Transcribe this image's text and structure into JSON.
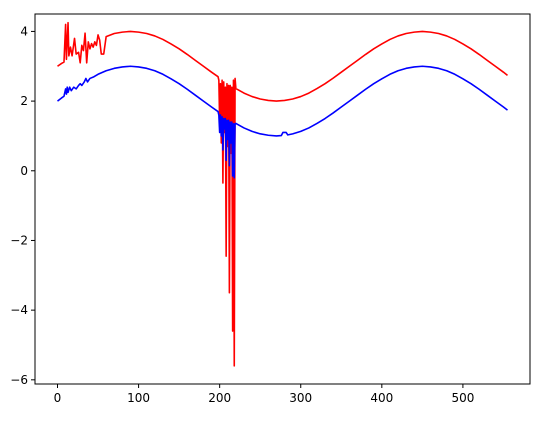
{
  "chart_data": {
    "type": "line",
    "title": "",
    "xlabel": "",
    "ylabel": "",
    "xlim": [
      -27.75,
      582.75
    ],
    "ylim": [
      -6.12,
      4.5
    ],
    "xticks": [
      0,
      100,
      200,
      300,
      400,
      500
    ],
    "yticks": [
      -6,
      -4,
      -2,
      0,
      2,
      4
    ],
    "xtick_labels": [
      "0",
      "100",
      "200",
      "300",
      "400",
      "500"
    ],
    "ytick_labels": [
      "−6",
      "−4",
      "−2",
      "0",
      "2",
      "4"
    ],
    "grid": false,
    "legend": "none",
    "series": [
      {
        "color": "#ff0000",
        "points": [
          [
            0,
            3.0
          ],
          [
            5,
            3.08
          ],
          [
            8,
            3.12
          ],
          [
            10,
            4.2
          ],
          [
            11,
            3.2
          ],
          [
            13,
            4.25
          ],
          [
            14,
            3.3
          ],
          [
            16,
            3.55
          ],
          [
            18,
            3.3
          ],
          [
            21,
            3.8
          ],
          [
            23,
            3.35
          ],
          [
            26,
            3.4
          ],
          [
            28,
            3.1
          ],
          [
            30,
            3.6
          ],
          [
            32,
            3.45
          ],
          [
            34,
            3.95
          ],
          [
            36,
            3.1
          ],
          [
            38,
            3.7
          ],
          [
            40,
            3.5
          ],
          [
            42,
            3.65
          ],
          [
            44,
            3.55
          ],
          [
            46,
            3.7
          ],
          [
            48,
            3.6
          ],
          [
            50,
            3.9
          ],
          [
            52,
            3.75
          ],
          [
            54,
            3.35
          ],
          [
            57,
            3.35
          ],
          [
            60,
            3.85
          ],
          [
            70,
            3.94
          ],
          [
            80,
            3.98
          ],
          [
            90,
            4.0
          ],
          [
            100,
            3.98
          ],
          [
            110,
            3.94
          ],
          [
            120,
            3.87
          ],
          [
            130,
            3.77
          ],
          [
            140,
            3.64
          ],
          [
            150,
            3.5
          ],
          [
            160,
            3.34
          ],
          [
            170,
            3.17
          ],
          [
            180,
            3.0
          ],
          [
            190,
            2.83
          ],
          [
            198,
            2.7
          ],
          [
            199,
            2.6
          ],
          [
            200,
            1.4
          ],
          [
            201,
            2.5
          ],
          [
            202,
            0.8
          ],
          [
            203,
            2.6
          ],
          [
            204,
            -0.35
          ],
          [
            205,
            2.55
          ],
          [
            206,
            1.1
          ],
          [
            207,
            2.4
          ],
          [
            208,
            -2.45
          ],
          [
            209,
            2.5
          ],
          [
            210,
            0.7
          ],
          [
            211,
            2.45
          ],
          [
            212,
            -3.5
          ],
          [
            213,
            2.45
          ],
          [
            214,
            0.5
          ],
          [
            215,
            2.4
          ],
          [
            216,
            -4.6
          ],
          [
            217,
            2.6
          ],
          [
            218,
            -5.6
          ],
          [
            219,
            2.65
          ],
          [
            220,
            2.36
          ],
          [
            230,
            2.23
          ],
          [
            240,
            2.13
          ],
          [
            250,
            2.06
          ],
          [
            260,
            2.02
          ],
          [
            270,
            2.0
          ],
          [
            280,
            2.02
          ],
          [
            290,
            2.06
          ],
          [
            300,
            2.13
          ],
          [
            310,
            2.23
          ],
          [
            320,
            2.36
          ],
          [
            330,
            2.5
          ],
          [
            340,
            2.66
          ],
          [
            350,
            2.83
          ],
          [
            360,
            3.0
          ],
          [
            370,
            3.17
          ],
          [
            380,
            3.34
          ],
          [
            390,
            3.5
          ],
          [
            400,
            3.64
          ],
          [
            410,
            3.77
          ],
          [
            420,
            3.87
          ],
          [
            430,
            3.94
          ],
          [
            440,
            3.98
          ],
          [
            450,
            4.0
          ],
          [
            460,
            3.98
          ],
          [
            470,
            3.94
          ],
          [
            480,
            3.87
          ],
          [
            490,
            3.77
          ],
          [
            500,
            3.64
          ],
          [
            510,
            3.5
          ],
          [
            520,
            3.34
          ],
          [
            530,
            3.17
          ],
          [
            540,
            3.0
          ],
          [
            550,
            2.83
          ],
          [
            555,
            2.74
          ]
        ]
      },
      {
        "color": "#0000ff",
        "points": [
          [
            0,
            2.0
          ],
          [
            5,
            2.09
          ],
          [
            8,
            2.14
          ],
          [
            10,
            2.35
          ],
          [
            11,
            2.2
          ],
          [
            12,
            2.4
          ],
          [
            13,
            2.25
          ],
          [
            15,
            2.4
          ],
          [
            17,
            2.3
          ],
          [
            20,
            2.4
          ],
          [
            23,
            2.35
          ],
          [
            26,
            2.45
          ],
          [
            28,
            2.5
          ],
          [
            30,
            2.45
          ],
          [
            33,
            2.55
          ],
          [
            35,
            2.65
          ],
          [
            37,
            2.55
          ],
          [
            40,
            2.65
          ],
          [
            45,
            2.7
          ],
          [
            50,
            2.77
          ],
          [
            55,
            2.82
          ],
          [
            60,
            2.87
          ],
          [
            70,
            2.94
          ],
          [
            80,
            2.98
          ],
          [
            90,
            3.0
          ],
          [
            100,
            2.98
          ],
          [
            110,
            2.94
          ],
          [
            120,
            2.87
          ],
          [
            130,
            2.77
          ],
          [
            140,
            2.64
          ],
          [
            150,
            2.5
          ],
          [
            160,
            2.34
          ],
          [
            170,
            2.17
          ],
          [
            180,
            2.0
          ],
          [
            190,
            1.83
          ],
          [
            198,
            1.7
          ],
          [
            199,
            1.6
          ],
          [
            200,
            1.1
          ],
          [
            201,
            1.6
          ],
          [
            202,
            1.0
          ],
          [
            203,
            1.55
          ],
          [
            204,
            0.6
          ],
          [
            205,
            1.5
          ],
          [
            206,
            1.2
          ],
          [
            207,
            1.5
          ],
          [
            208,
            0.3
          ],
          [
            209,
            1.45
          ],
          [
            210,
            0.9
          ],
          [
            211,
            1.45
          ],
          [
            212,
            0.15
          ],
          [
            213,
            1.4
          ],
          [
            214,
            0.8
          ],
          [
            215,
            1.4
          ],
          [
            216,
            -0.15
          ],
          [
            217,
            1.35
          ],
          [
            218,
            -0.2
          ],
          [
            219,
            1.35
          ],
          [
            220,
            1.36
          ],
          [
            230,
            1.23
          ],
          [
            240,
            1.13
          ],
          [
            250,
            1.06
          ],
          [
            260,
            1.02
          ],
          [
            270,
            1.0
          ],
          [
            276,
            1.01
          ],
          [
            278,
            1.1
          ],
          [
            282,
            1.1
          ],
          [
            284,
            1.03
          ],
          [
            290,
            1.06
          ],
          [
            300,
            1.13
          ],
          [
            310,
            1.23
          ],
          [
            320,
            1.36
          ],
          [
            330,
            1.5
          ],
          [
            340,
            1.66
          ],
          [
            350,
            1.83
          ],
          [
            360,
            2.0
          ],
          [
            370,
            2.17
          ],
          [
            380,
            2.34
          ],
          [
            390,
            2.5
          ],
          [
            400,
            2.64
          ],
          [
            410,
            2.77
          ],
          [
            420,
            2.87
          ],
          [
            430,
            2.94
          ],
          [
            440,
            2.98
          ],
          [
            450,
            3.0
          ],
          [
            460,
            2.98
          ],
          [
            470,
            2.94
          ],
          [
            480,
            2.87
          ],
          [
            490,
            2.77
          ],
          [
            500,
            2.64
          ],
          [
            510,
            2.5
          ],
          [
            520,
            2.34
          ],
          [
            530,
            2.17
          ],
          [
            540,
            2.0
          ],
          [
            550,
            1.83
          ],
          [
            555,
            1.74
          ]
        ]
      }
    ]
  }
}
